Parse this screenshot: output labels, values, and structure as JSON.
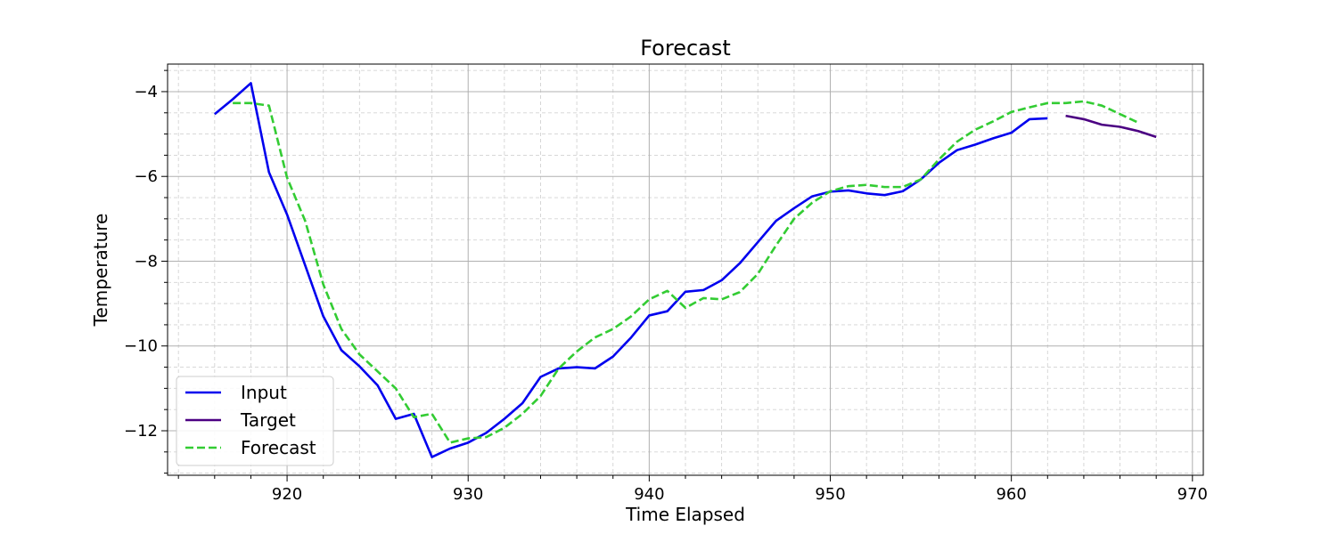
{
  "chart_data": {
    "type": "line",
    "title": "Forecast",
    "xlabel": "Time Elapsed",
    "ylabel": "Temperature",
    "xlim": [
      913.4,
      970.6
    ],
    "ylim": [
      -13.05,
      -3.35
    ],
    "xticks": [
      920,
      930,
      940,
      950,
      960,
      970
    ],
    "yticks": [
      -12,
      -10,
      -8,
      -6,
      -4
    ],
    "grid": true,
    "legend_position": "lower left",
    "series": [
      {
        "name": "Input",
        "color": "#0000ee",
        "style": "solid",
        "x": [
          916,
          917,
          918,
          919,
          920,
          921,
          922,
          923,
          924,
          925,
          926,
          927,
          928,
          929,
          930,
          931,
          932,
          933,
          934,
          935,
          936,
          937,
          938,
          939,
          940,
          941,
          942,
          943,
          944,
          945,
          946,
          947,
          948,
          949,
          950,
          951,
          952,
          953,
          954,
          955,
          956,
          957,
          958,
          959,
          960,
          961,
          962
        ],
        "y": [
          -4.53,
          -4.18,
          -3.8,
          -5.9,
          -6.9,
          -8.1,
          -9.3,
          -10.1,
          -10.48,
          -10.93,
          -11.72,
          -11.6,
          -12.62,
          -12.42,
          -12.28,
          -12.05,
          -11.72,
          -11.35,
          -10.73,
          -10.53,
          -10.5,
          -10.53,
          -10.25,
          -9.8,
          -9.28,
          -9.18,
          -8.72,
          -8.68,
          -8.45,
          -8.05,
          -7.55,
          -7.05,
          -6.75,
          -6.47,
          -6.36,
          -6.33,
          -6.4,
          -6.44,
          -6.35,
          -6.07,
          -5.68,
          -5.38,
          -5.25,
          -5.1,
          -4.97,
          -4.65,
          -4.63
        ]
      },
      {
        "name": "Target",
        "color": "#4b0082",
        "style": "solid",
        "x": [
          963,
          964,
          965,
          966,
          967,
          968
        ],
        "y": [
          -4.57,
          -4.65,
          -4.78,
          -4.83,
          -4.93,
          -5.07
        ]
      },
      {
        "name": "Forecast",
        "color": "#33cc33",
        "style": "dashed",
        "x": [
          917,
          918,
          919,
          920,
          921,
          922,
          923,
          924,
          925,
          926,
          927,
          928,
          929,
          930,
          931,
          932,
          933,
          934,
          935,
          936,
          937,
          938,
          939,
          940,
          941,
          942,
          943,
          944,
          945,
          946,
          947,
          948,
          949,
          950,
          951,
          952,
          953,
          954,
          955,
          956,
          957,
          958,
          959,
          960,
          961,
          962,
          963,
          964,
          965,
          966,
          967
        ],
        "y": [
          -4.27,
          -4.27,
          -4.33,
          -6.03,
          -7.05,
          -8.55,
          -9.6,
          -10.2,
          -10.6,
          -11.0,
          -11.68,
          -11.6,
          -12.28,
          -12.18,
          -12.15,
          -11.93,
          -11.6,
          -11.18,
          -10.53,
          -10.13,
          -9.8,
          -9.6,
          -9.3,
          -8.9,
          -8.7,
          -9.1,
          -8.87,
          -8.9,
          -8.73,
          -8.3,
          -7.63,
          -7.0,
          -6.62,
          -6.35,
          -6.23,
          -6.2,
          -6.25,
          -6.25,
          -6.07,
          -5.6,
          -5.18,
          -4.9,
          -4.7,
          -4.48,
          -4.37,
          -4.27,
          -4.27,
          -4.23,
          -4.33,
          -4.53,
          -4.73
        ]
      }
    ]
  }
}
